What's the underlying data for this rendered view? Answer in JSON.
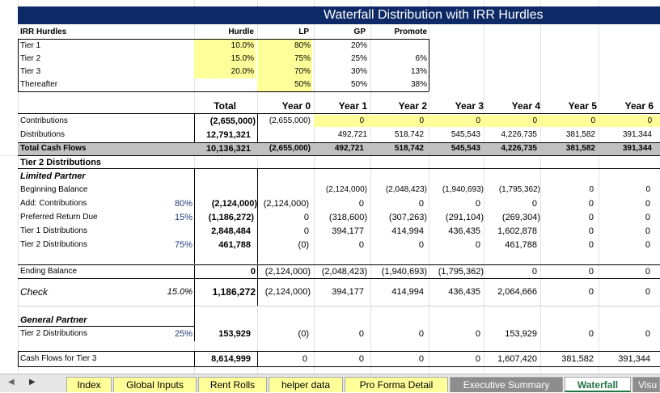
{
  "title": "Waterfall Distribution with IRR Hurdles",
  "hurdles": {
    "header": {
      "label": "IRR Hurdles",
      "hurdle": "Hurdle",
      "lp": "LP",
      "gp": "GP",
      "promote": "Promote"
    },
    "rows": [
      {
        "label": "Tier 1",
        "hurdle": "10.0%",
        "lp": "80%",
        "gp": "20%",
        "promote": ""
      },
      {
        "label": "Tier 2",
        "hurdle": "15.0%",
        "lp": "75%",
        "gp": "25%",
        "promote": "6%"
      },
      {
        "label": "Tier 3",
        "hurdle": "20.0%",
        "lp": "70%",
        "gp": "30%",
        "promote": "13%"
      },
      {
        "label": "Thereafter",
        "hurdle": "",
        "lp": "50%",
        "gp": "50%",
        "promote": "38%"
      }
    ]
  },
  "years": {
    "total": "Total",
    "y0": "Year 0",
    "y1": "Year 1",
    "y2": "Year 2",
    "y3": "Year 3",
    "y4": "Year 4",
    "y5": "Year 5",
    "y6": "Year 6"
  },
  "cashflows": {
    "contrib": {
      "label": "Contributions",
      "total": "(2,655,000)",
      "y0": "(2,655,000)",
      "y1": "0",
      "y2": "0",
      "y3": "0",
      "y4": "0",
      "y5": "0",
      "y6": "0"
    },
    "dist": {
      "label": "Distributions",
      "total": "12,791,321",
      "y0": "",
      "y1": "492,721",
      "y2": "518,742",
      "y3": "545,543",
      "y4": "4,226,735",
      "y5": "381,582",
      "y6": "391,344"
    },
    "tcf": {
      "label": "Total Cash Flows",
      "total": "10,136,321",
      "y0": "(2,655,000)",
      "y1": "492,721",
      "y2": "518,742",
      "y3": "545,543",
      "y4": "4,226,735",
      "y5": "381,582",
      "y6": "391,344"
    }
  },
  "tier2": {
    "heading": "Tier 2 Distributions",
    "lp_heading": "Limited Partner",
    "beg": {
      "label": "Beginning Balance",
      "pct": "",
      "total": "",
      "y0": "",
      "y1": "(2,124,000)",
      "y2": "(2,048,423)",
      "y3": "(1,940,693)",
      "y4": "(1,795,362)",
      "y5": "0",
      "y6": "0"
    },
    "add": {
      "label": "Add: Contributions",
      "pct": "80%",
      "total": "(2,124,000)",
      "y0": "(2,124,000)",
      "y1": "0",
      "y2": "0",
      "y3": "0",
      "y4": "0",
      "y5": "0",
      "y6": "0"
    },
    "pref": {
      "label": "Preferred Return Due",
      "pct": "15%",
      "total": "(1,186,272)",
      "y0": "0",
      "y1": "(318,600)",
      "y2": "(307,263)",
      "y3": "(291,104)",
      "y4": "(269,304)",
      "y5": "0",
      "y6": "0"
    },
    "t1": {
      "label": "Tier 1 Distributions",
      "pct": "",
      "total": "2,848,484",
      "y0": "0",
      "y1": "394,177",
      "y2": "414,994",
      "y3": "436,435",
      "y4": "1,602,878",
      "y5": "0",
      "y6": "0"
    },
    "t2": {
      "label": "Tier 2 Distributions",
      "pct": "75%",
      "total": "461,788",
      "y0": "(0)",
      "y1": "0",
      "y2": "0",
      "y3": "0",
      "y4": "461,788",
      "y5": "0",
      "y6": "0"
    },
    "end": {
      "label": "Ending Balance",
      "pct": "",
      "total": "0",
      "y0": "(2,124,000)",
      "y1": "(2,048,423)",
      "y2": "(1,940,693)",
      "y3": "(1,795,362)",
      "y4": "0",
      "y5": "0",
      "y6": "0"
    },
    "check": {
      "label": "Check",
      "pct": "15.0%",
      "total": "1,186,272",
      "y0": "(2,124,000)",
      "y1": "394,177",
      "y2": "414,994",
      "y3": "436,435",
      "y4": "2,064,666",
      "y5": "0",
      "y6": "0"
    },
    "gp_heading": "General Partner",
    "gp_t2": {
      "label": "Tier 2 Distributions",
      "pct": "25%",
      "total": "153,929",
      "y0": "(0)",
      "y1": "0",
      "y2": "0",
      "y3": "0",
      "y4": "153,929",
      "y5": "0",
      "y6": "0"
    },
    "cf3": {
      "label": "Cash Flows for Tier 3",
      "pct": "",
      "total": "8,614,999",
      "y0": "0",
      "y1": "0",
      "y2": "0",
      "y3": "0",
      "y4": "1,607,420",
      "y5": "381,582",
      "y6": "391,344"
    }
  },
  "tabs": [
    "Index",
    "Global Inputs",
    "Rent Rolls",
    "helper data",
    "Pro Forma Detail",
    "Executive Summary",
    "Waterfall",
    "Visu"
  ],
  "colors": {
    "title_bar": "#0e2a66",
    "input_yellow": "#ffff99",
    "total_gray": "#c0c0c0",
    "active_tab": "#217346"
  }
}
